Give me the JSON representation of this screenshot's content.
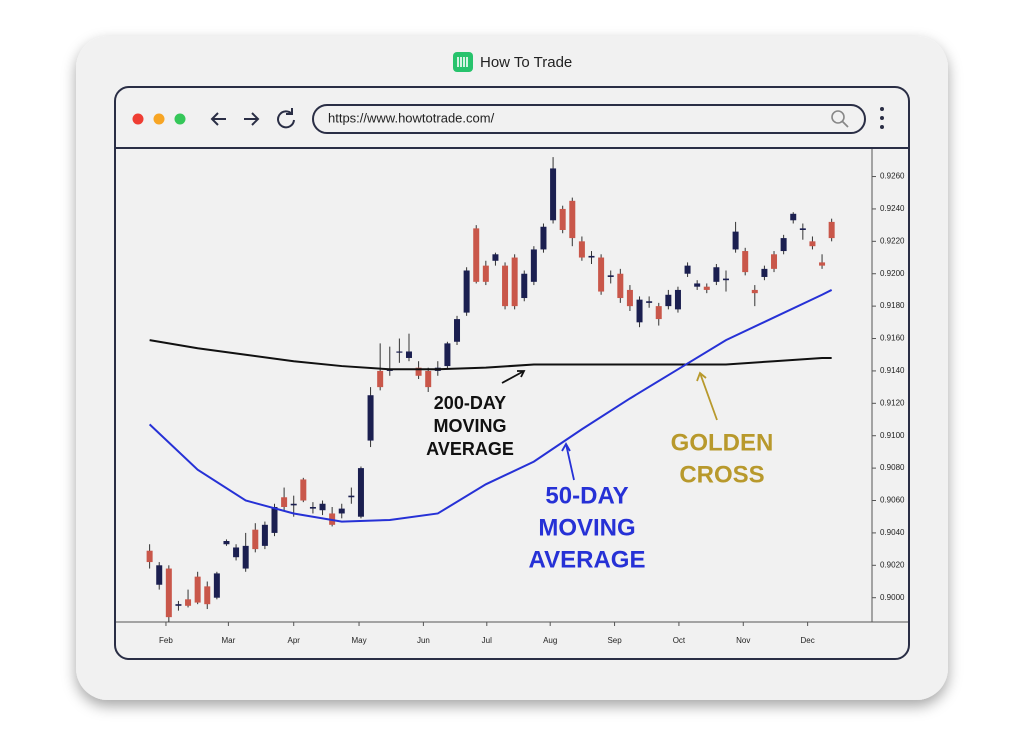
{
  "window": {
    "title": "How To Trade",
    "url": "https://www.howtotrade.com/"
  },
  "chart_data": {
    "type": "candlestick",
    "x": [
      0,
      1,
      2,
      3,
      4,
      5,
      6,
      7,
      8,
      9,
      10,
      11,
      12,
      13,
      14,
      15,
      16,
      17,
      18,
      19,
      20,
      21,
      22,
      23,
      24,
      25,
      26,
      27,
      28,
      29,
      30,
      31,
      32,
      33,
      34,
      35,
      36,
      37,
      38,
      39,
      40,
      41,
      42,
      43,
      44,
      45,
      46,
      47,
      48,
      49,
      50,
      51,
      52,
      53,
      54,
      55,
      56,
      57,
      58,
      59,
      60,
      61,
      62,
      63,
      64,
      65,
      66,
      67,
      68,
      69,
      70,
      71
    ],
    "ohlc": [
      [
        0.9029,
        0.9033,
        0.9018,
        0.9022
      ],
      [
        0.9008,
        0.9022,
        0.9005,
        0.902
      ],
      [
        0.9018,
        0.902,
        0.8985,
        0.8988
      ],
      [
        0.8995,
        0.8998,
        0.8992,
        0.8996
      ],
      [
        0.8999,
        0.9005,
        0.8994,
        0.8995
      ],
      [
        0.9013,
        0.9016,
        0.8996,
        0.8997
      ],
      [
        0.9007,
        0.901,
        0.8993,
        0.8996
      ],
      [
        0.9,
        0.9016,
        0.8999,
        0.9015
      ],
      [
        0.9033,
        0.9036,
        0.9032,
        0.9035
      ],
      [
        0.9025,
        0.9033,
        0.9023,
        0.9031
      ],
      [
        0.9018,
        0.904,
        0.9016,
        0.9032
      ],
      [
        0.9042,
        0.9046,
        0.9028,
        0.903
      ],
      [
        0.9032,
        0.9047,
        0.903,
        0.9045
      ],
      [
        0.904,
        0.9058,
        0.9038,
        0.9056
      ],
      [
        0.9062,
        0.9068,
        0.9054,
        0.9056
      ],
      [
        0.9057,
        0.9063,
        0.905,
        0.9058
      ],
      [
        0.9073,
        0.9074,
        0.9059,
        0.906
      ],
      [
        0.9055,
        0.9059,
        0.9052,
        0.9056
      ],
      [
        0.9054,
        0.906,
        0.9051,
        0.9058
      ],
      [
        0.9052,
        0.9056,
        0.9044,
        0.9045
      ],
      [
        0.9052,
        0.9058,
        0.9049,
        0.9055
      ],
      [
        0.9062,
        0.9068,
        0.9058,
        0.9063
      ],
      [
        0.905,
        0.9081,
        0.9049,
        0.908
      ],
      [
        0.9097,
        0.913,
        0.9093,
        0.9125
      ],
      [
        0.914,
        0.9157,
        0.9128,
        0.913
      ],
      [
        0.914,
        0.9155,
        0.9137,
        0.9141
      ],
      [
        0.9152,
        0.916,
        0.9145,
        0.9152
      ],
      [
        0.9148,
        0.9163,
        0.9146,
        0.9152
      ],
      [
        0.9142,
        0.9146,
        0.9135,
        0.9137
      ],
      [
        0.914,
        0.9142,
        0.9127,
        0.913
      ],
      [
        0.914,
        0.9146,
        0.9137,
        0.9142
      ],
      [
        0.9143,
        0.9158,
        0.9141,
        0.9157
      ],
      [
        0.9158,
        0.9174,
        0.9156,
        0.9172
      ],
      [
        0.9176,
        0.9204,
        0.9174,
        0.9202
      ],
      [
        0.9228,
        0.923,
        0.9194,
        0.9195
      ],
      [
        0.9205,
        0.9208,
        0.9193,
        0.9195
      ],
      [
        0.9208,
        0.9213,
        0.9205,
        0.9212
      ],
      [
        0.9205,
        0.9207,
        0.9178,
        0.918
      ],
      [
        0.921,
        0.9212,
        0.9178,
        0.918
      ],
      [
        0.9185,
        0.9202,
        0.9183,
        0.92
      ],
      [
        0.9195,
        0.9217,
        0.9193,
        0.9215
      ],
      [
        0.9215,
        0.9231,
        0.9213,
        0.9229
      ],
      [
        0.9233,
        0.9272,
        0.9231,
        0.9265
      ],
      [
        0.924,
        0.9242,
        0.9225,
        0.9227
      ],
      [
        0.9245,
        0.9247,
        0.9217,
        0.9222
      ],
      [
        0.922,
        0.9223,
        0.9208,
        0.921
      ],
      [
        0.921,
        0.9214,
        0.9206,
        0.9211
      ],
      [
        0.921,
        0.9212,
        0.9187,
        0.9189
      ],
      [
        0.9198,
        0.9202,
        0.9194,
        0.9199
      ],
      [
        0.92,
        0.9203,
        0.9182,
        0.9185
      ],
      [
        0.919,
        0.9193,
        0.9177,
        0.918
      ],
      [
        0.917,
        0.9186,
        0.9167,
        0.9184
      ],
      [
        0.9182,
        0.9186,
        0.9179,
        0.9183
      ],
      [
        0.918,
        0.9182,
        0.9168,
        0.9172
      ],
      [
        0.918,
        0.919,
        0.9178,
        0.9187
      ],
      [
        0.9178,
        0.9192,
        0.9176,
        0.919
      ],
      [
        0.92,
        0.9207,
        0.9198,
        0.9205
      ],
      [
        0.9192,
        0.9196,
        0.919,
        0.9194
      ],
      [
        0.9192,
        0.9194,
        0.9188,
        0.919
      ],
      [
        0.9195,
        0.9206,
        0.9193,
        0.9204
      ],
      [
        0.9196,
        0.9202,
        0.9189,
        0.9197
      ],
      [
        0.9215,
        0.9232,
        0.9213,
        0.9226
      ],
      [
        0.9214,
        0.9216,
        0.9199,
        0.9201
      ],
      [
        0.919,
        0.9193,
        0.918,
        0.9188
      ],
      [
        0.9198,
        0.9205,
        0.9196,
        0.9203
      ],
      [
        0.9212,
        0.9214,
        0.9201,
        0.9203
      ],
      [
        0.9214,
        0.9224,
        0.9212,
        0.9222
      ],
      [
        0.9233,
        0.9238,
        0.9231,
        0.9237
      ],
      [
        0.9227,
        0.9231,
        0.9221,
        0.9228
      ],
      [
        0.922,
        0.9223,
        0.9215,
        0.9217
      ],
      [
        0.9207,
        0.9212,
        0.9203,
        0.9205
      ],
      [
        0.9232,
        0.9234,
        0.922,
        0.9222
      ]
    ],
    "up_color": "#1b1f50",
    "down_color": "#c9574a",
    "line_x": [
      0,
      5,
      10,
      15,
      20,
      25,
      30,
      35,
      40,
      45,
      50,
      55,
      60,
      65,
      70,
      71
    ],
    "lines": [
      {
        "color": "#111111",
        "values": [
          0.9159,
          0.9154,
          0.915,
          0.9146,
          0.9143,
          0.9141,
          0.9141,
          0.9142,
          0.9144,
          0.9144,
          0.9144,
          0.9144,
          0.9144,
          0.9146,
          0.9148,
          0.9148
        ]
      },
      {
        "color": "#2631d6",
        "values": [
          0.9107,
          0.9079,
          0.906,
          0.9052,
          0.9047,
          0.9048,
          0.9052,
          0.907,
          0.9084,
          0.9104,
          0.9123,
          0.9141,
          0.9159,
          0.9173,
          0.9187,
          0.919
        ]
      }
    ],
    "xlim": [
      -3.5,
      75.2
    ],
    "xticks": [
      {
        "value": 1.7,
        "label": "Feb"
      },
      {
        "value": 8.2,
        "label": "Mar"
      },
      {
        "value": 15,
        "label": "Apr"
      },
      {
        "value": 21.8,
        "label": "May"
      },
      {
        "value": 28.5,
        "label": "Jun"
      },
      {
        "value": 35.1,
        "label": "Jul"
      },
      {
        "value": 41.7,
        "label": "Aug"
      },
      {
        "value": 48.4,
        "label": "Sep"
      },
      {
        "value": 55.1,
        "label": "Oct"
      },
      {
        "value": 61.8,
        "label": "Nov"
      },
      {
        "value": 68.5,
        "label": "Dec"
      }
    ],
    "ylim": [
      0.8985,
      0.9277
    ],
    "yticks": [
      {
        "value": 0.9,
        "label": "0.9000"
      },
      {
        "value": 0.902,
        "label": "0.9020"
      },
      {
        "value": 0.904,
        "label": "0.9040"
      },
      {
        "value": 0.906,
        "label": "0.9060"
      },
      {
        "value": 0.908,
        "label": "0.9080"
      },
      {
        "value": 0.91,
        "label": "0.9100"
      },
      {
        "value": 0.912,
        "label": "0.9120"
      },
      {
        "value": 0.914,
        "label": "0.9140"
      },
      {
        "value": 0.916,
        "label": "0.9160"
      },
      {
        "value": 0.918,
        "label": "0.9180"
      },
      {
        "value": 0.92,
        "label": "0.9200"
      },
      {
        "value": 0.922,
        "label": "0.9220"
      },
      {
        "value": 0.924,
        "label": "0.9240"
      },
      {
        "value": 0.926,
        "label": "0.9260"
      }
    ],
    "annotations": [
      {
        "lines": [
          "200-DAY",
          "MOVING",
          "AVERAGE"
        ],
        "color": "#111111"
      },
      {
        "lines": [
          "50-DAY",
          "MOVING",
          "AVERAGE"
        ],
        "color": "#2631d6"
      },
      {
        "lines": [
          "GOLDEN",
          "CROSS"
        ],
        "color": "#b8992c"
      }
    ]
  }
}
